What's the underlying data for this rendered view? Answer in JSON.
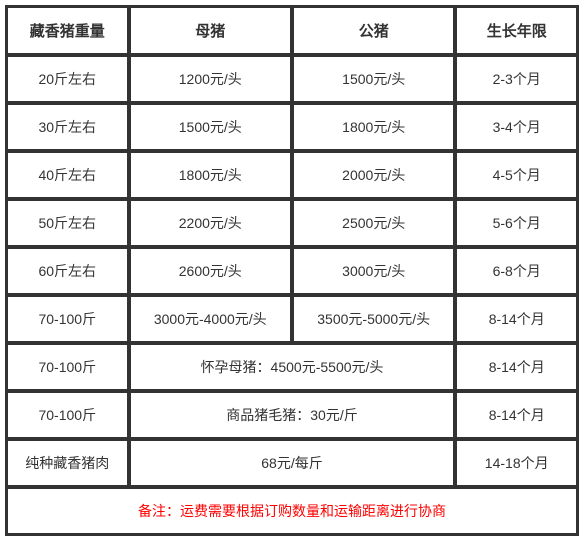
{
  "table": {
    "headers": {
      "weight": "藏香猪重量",
      "sow": "母猪",
      "boar": "公猪",
      "age": "生长年限"
    },
    "rows": [
      {
        "weight": "20斤左右",
        "sow": "1200元/头",
        "boar": "1500元/头",
        "age": "2-3个月"
      },
      {
        "weight": "30斤左右",
        "sow": "1500元/头",
        "boar": "1800元/头",
        "age": "3-4个月"
      },
      {
        "weight": "40斤左右",
        "sow": "1800元/头",
        "boar": "2000元/头",
        "age": "4-5个月"
      },
      {
        "weight": "50斤左右",
        "sow": "2200元/头",
        "boar": "2500元/头",
        "age": "5-6个月"
      },
      {
        "weight": "60斤左右",
        "sow": "2600元/头",
        "boar": "3000元/头",
        "age": "6-8个月"
      },
      {
        "weight": "70-100斤",
        "sow": "3000元-4000元/头",
        "boar": "3500元-5000元/头",
        "age": "8-14个月"
      }
    ],
    "merged_rows": [
      {
        "weight": "70-100斤",
        "merged": "怀孕母猪：4500元-5500元/头",
        "age": "8-14个月"
      },
      {
        "weight": "70-100斤",
        "merged": "商品猪毛猪：30元/斤",
        "age": "8-14个月"
      },
      {
        "weight": "纯种藏香猪肉",
        "merged": "68元/每斤",
        "age": "14-18个月"
      }
    ],
    "footer": "备注：运费需要根据订购数量和运输距离进行协商"
  }
}
